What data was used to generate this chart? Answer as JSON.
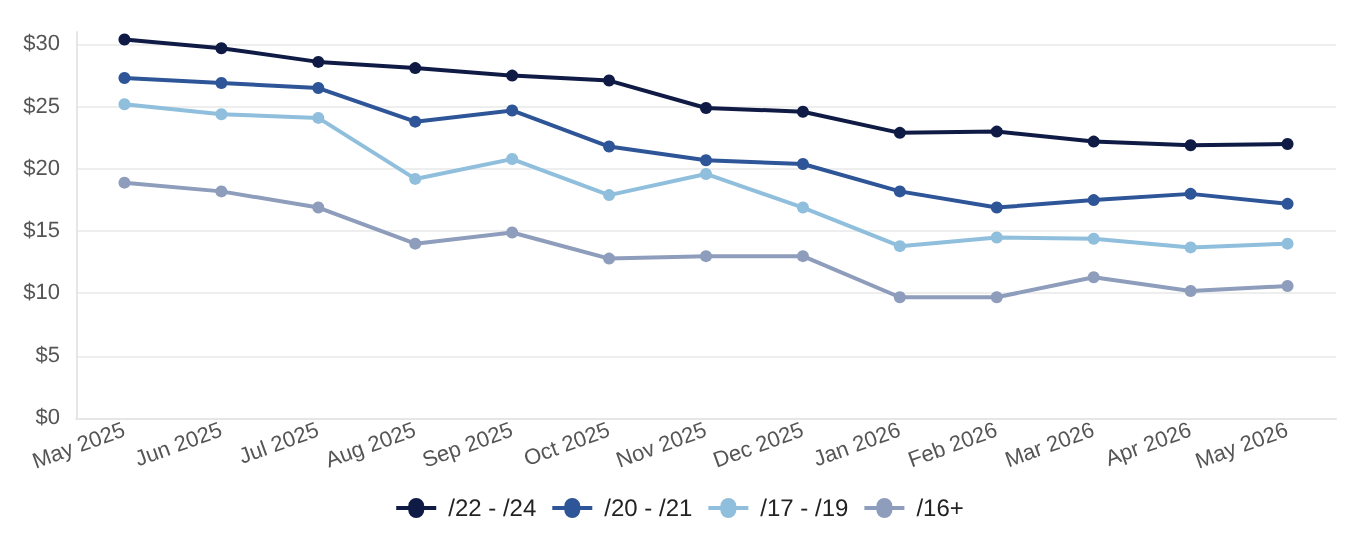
{
  "chart_data": {
    "type": "line",
    "categories": [
      "May 2025",
      "Jun 2025",
      "Jul 2025",
      "Aug 2025",
      "Sep 2025",
      "Oct 2025",
      "Nov 2025",
      "Dec 2025",
      "Jan 2026",
      "Feb 2026",
      "Mar 2026",
      "Apr 2026",
      "May 2026"
    ],
    "series": [
      {
        "name": "/22 - /24",
        "color": "#0f1b45",
        "values": [
          30.4,
          29.7,
          28.6,
          28.1,
          27.5,
          27.1,
          24.9,
          24.6,
          22.9,
          23.0,
          22.2,
          21.9,
          22.0
        ]
      },
      {
        "name": "/20 - /21",
        "color": "#2e5597",
        "values": [
          27.3,
          26.9,
          26.5,
          23.8,
          24.7,
          21.8,
          20.7,
          20.4,
          18.2,
          16.9,
          17.5,
          18.0,
          17.2
        ]
      },
      {
        "name": "/17 - /19",
        "color": "#8fbfdc",
        "values": [
          25.2,
          24.4,
          24.1,
          19.2,
          20.8,
          17.9,
          19.6,
          16.9,
          13.8,
          14.5,
          14.4,
          13.7,
          14.0
        ]
      },
      {
        "name": "/16+",
        "color": "#8e9dbb",
        "values": [
          18.9,
          18.2,
          16.9,
          14.0,
          14.9,
          12.8,
          13.0,
          13.0,
          9.7,
          9.7,
          11.3,
          10.2,
          10.6
        ]
      }
    ],
    "ylim": [
      0,
      31
    ],
    "yticks": [
      {
        "value": 0,
        "label": "$0"
      },
      {
        "value": 5,
        "label": "$5"
      },
      {
        "value": 10,
        "label": "$10"
      },
      {
        "value": 15,
        "label": "$15"
      },
      {
        "value": 20,
        "label": "$20"
      },
      {
        "value": 25,
        "label": "$25"
      },
      {
        "value": 30,
        "label": "$30"
      }
    ],
    "grid": "y",
    "legend": "bottom",
    "marker": "circle",
    "line_style": "solid"
  }
}
